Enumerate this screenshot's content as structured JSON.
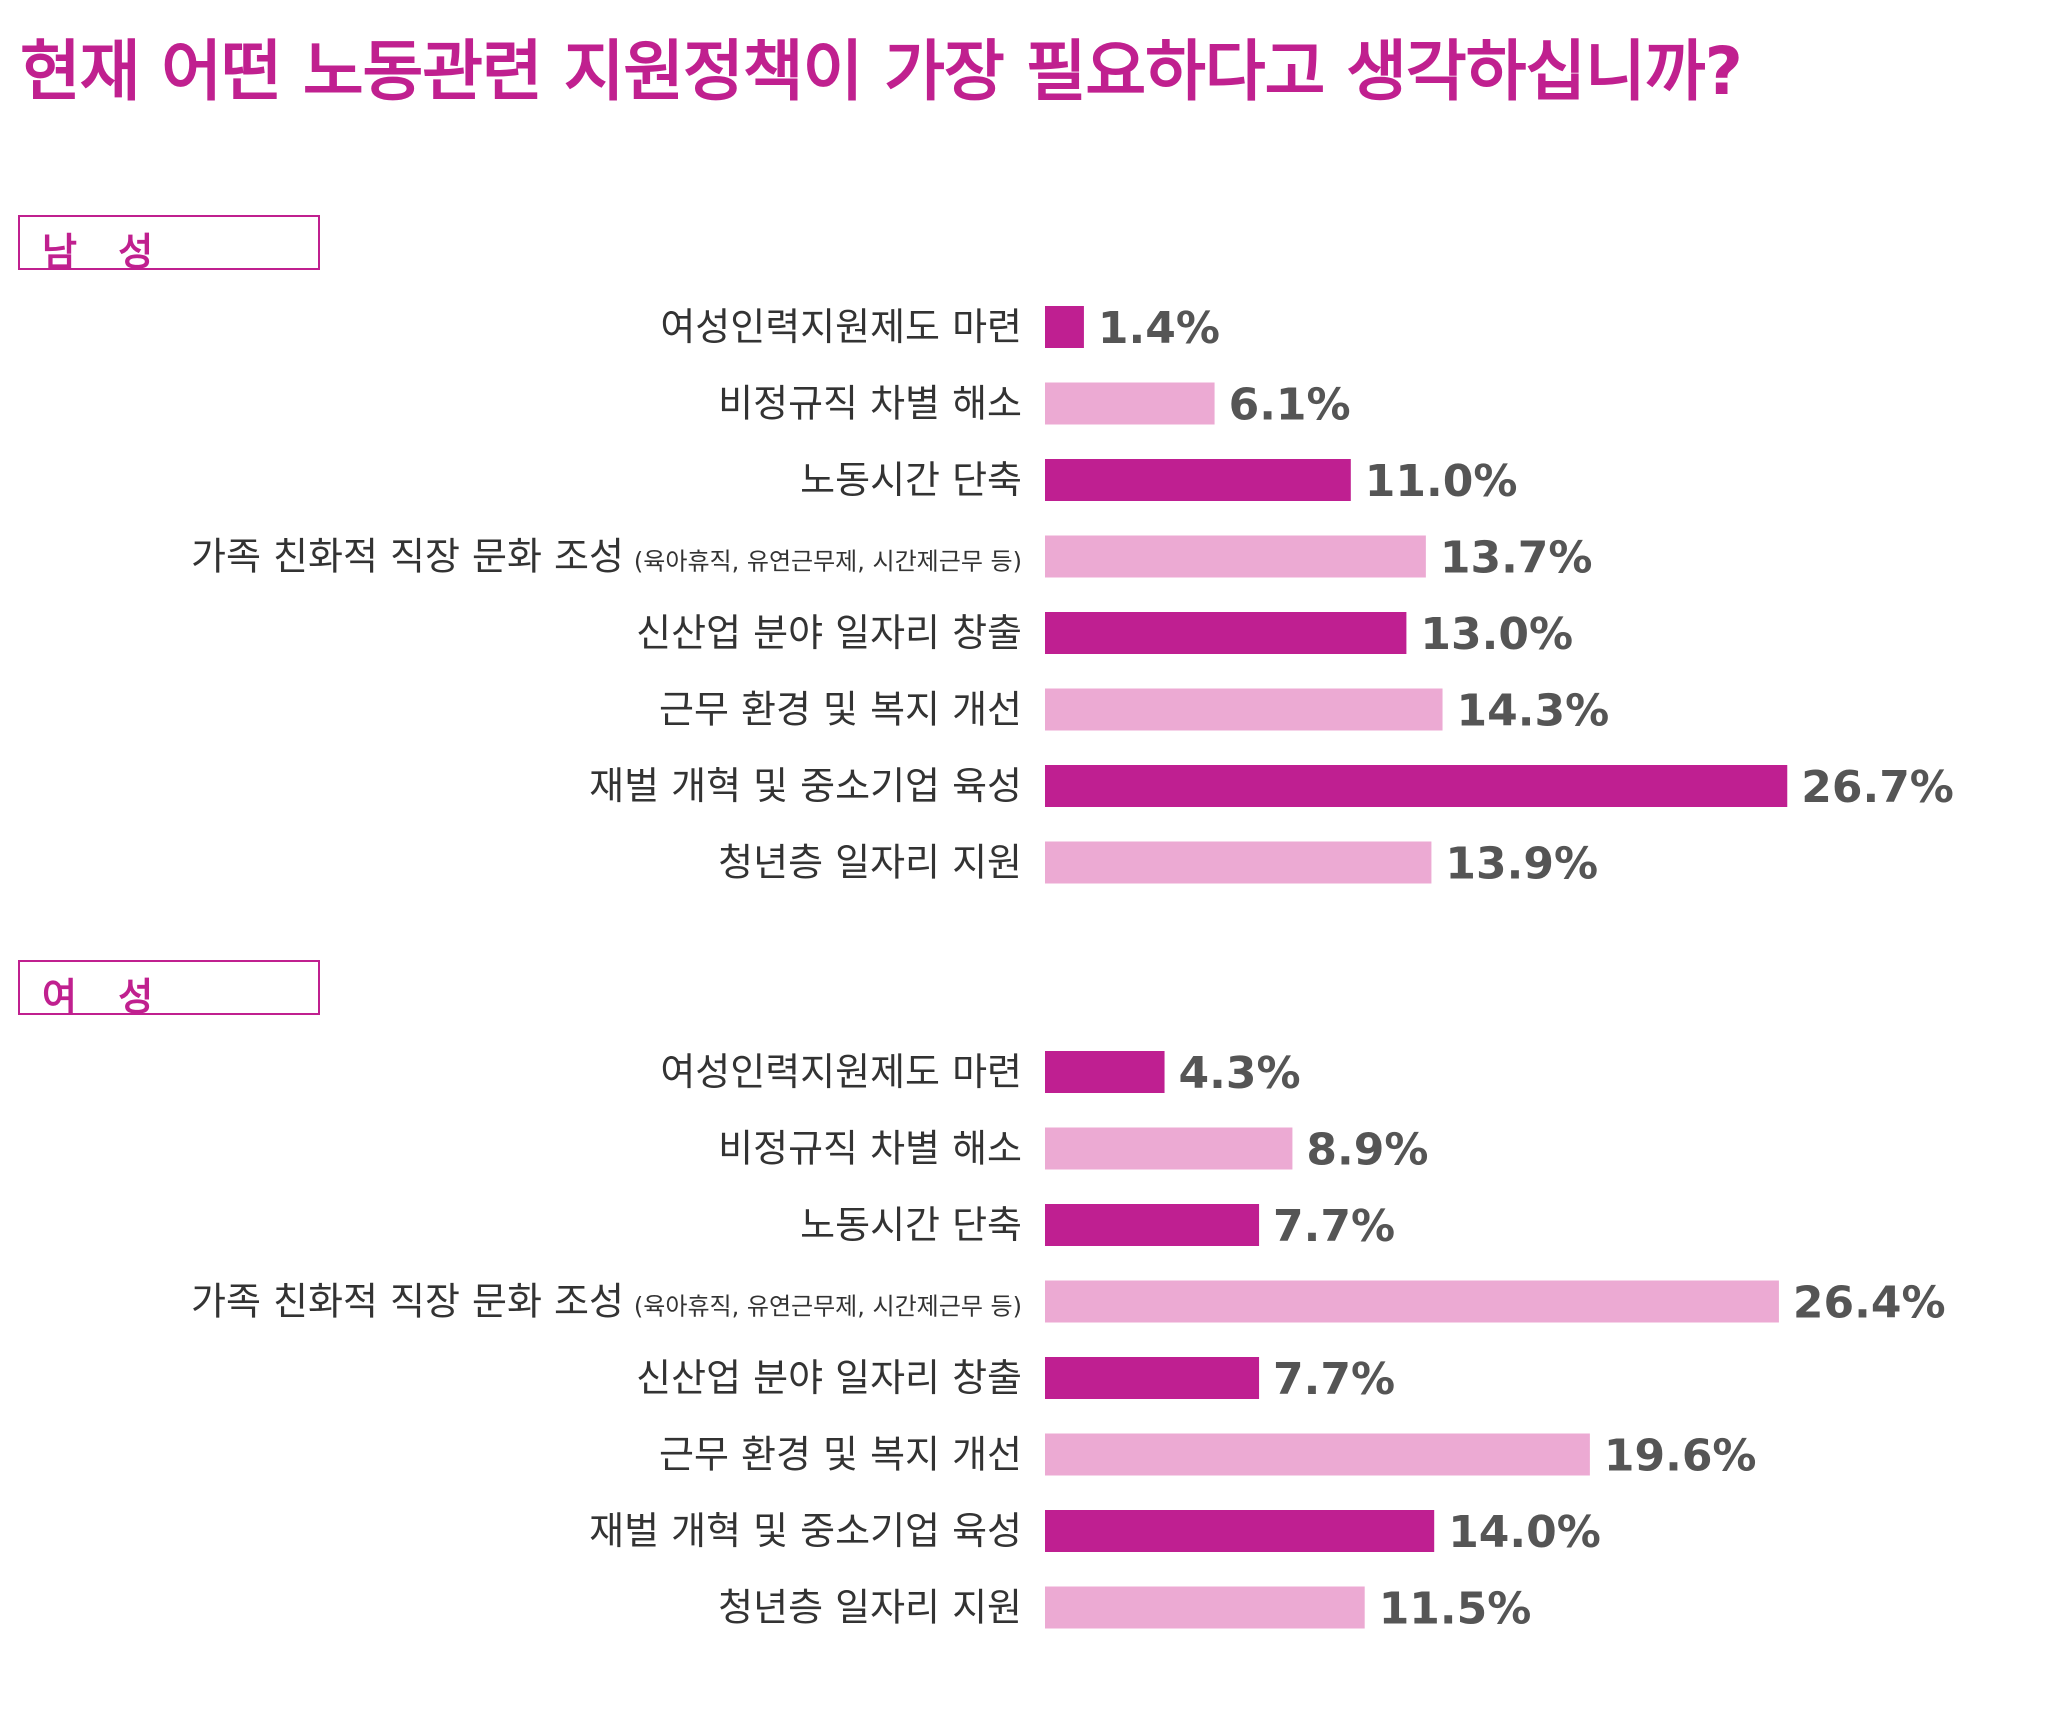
{
  "title": "현재 어떤 노동관련 지원정책이 가장 필요하다고 생각하십니까?",
  "colors": {
    "accent": "#c0208f",
    "dark_bar": "#bf1f91",
    "light_bar": "#ecaad3",
    "value_text": "#555555",
    "label_text": "#333333"
  },
  "chart_data": [
    {
      "type": "bar",
      "orientation": "horizontal",
      "title": "남 성",
      "categories": [
        {
          "main": "여성인력지원제도 마련",
          "note": ""
        },
        {
          "main": "비정규직 차별 해소",
          "note": ""
        },
        {
          "main": "노동시간 단축",
          "note": ""
        },
        {
          "main": "가족 친화적 직장 문화 조성",
          "note": "(육아휴직, 유연근무제, 시간제근무 등)"
        },
        {
          "main": "신산업 분야 일자리 창출",
          "note": ""
        },
        {
          "main": "근무 환경 및 복지 개선",
          "note": ""
        },
        {
          "main": "재벌 개혁 및 중소기업 육성",
          "note": ""
        },
        {
          "main": "청년층 일자리 지원",
          "note": ""
        }
      ],
      "values": [
        1.4,
        6.1,
        11.0,
        13.7,
        13.0,
        14.3,
        26.7,
        13.9
      ],
      "value_labels": [
        "1.4%",
        "6.1%",
        "11.0%",
        "13.7%",
        "13.0%",
        "14.3%",
        "26.7%",
        "13.9%"
      ],
      "bar_styles": [
        "dark",
        "light",
        "dark",
        "light",
        "dark",
        "light",
        "dark",
        "light"
      ],
      "unit": "%",
      "grid": false
    },
    {
      "type": "bar",
      "orientation": "horizontal",
      "title": "여 성",
      "categories": [
        {
          "main": "여성인력지원제도 마련",
          "note": ""
        },
        {
          "main": "비정규직 차별 해소",
          "note": ""
        },
        {
          "main": "노동시간 단축",
          "note": ""
        },
        {
          "main": "가족 친화적 직장 문화 조성",
          "note": "(육아휴직, 유연근무제, 시간제근무 등)"
        },
        {
          "main": "신산업 분야 일자리 창출",
          "note": ""
        },
        {
          "main": "근무 환경 및 복지 개선",
          "note": ""
        },
        {
          "main": "재벌 개혁 및 중소기업 육성",
          "note": ""
        },
        {
          "main": "청년층 일자리 지원",
          "note": ""
        }
      ],
      "values": [
        4.3,
        8.9,
        7.7,
        26.4,
        7.7,
        19.6,
        14.0,
        11.5
      ],
      "value_labels": [
        "4.3%",
        "8.9%",
        "7.7%",
        "26.4%",
        "7.7%",
        "19.6%",
        "14.0%",
        "11.5%"
      ],
      "bar_styles": [
        "dark",
        "light",
        "dark",
        "light",
        "dark",
        "light",
        "dark",
        "light"
      ],
      "unit": "%",
      "grid": false
    }
  ]
}
